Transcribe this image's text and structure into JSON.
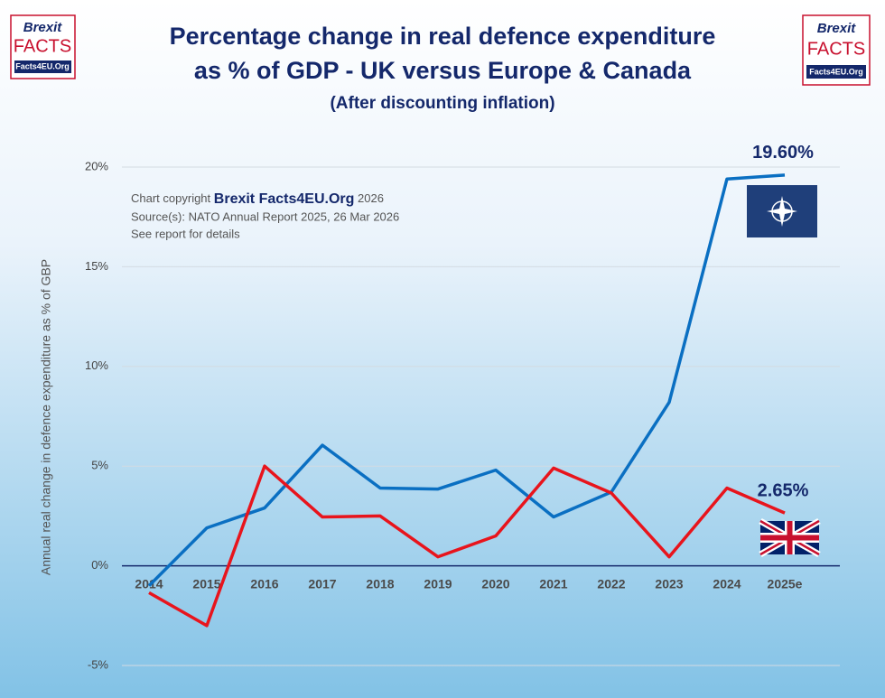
{
  "chart_data": {
    "type": "line",
    "title": "Percentage change in real defence expenditure",
    "title_line2": "as % of GDP - UK versus Europe & Canada",
    "subtitle": "(After discounting inflation)",
    "y_label": "Annual real change in defence expenditure as % of GBP",
    "annotations": {
      "copyright_prefix": "Chart copyright",
      "brand": "Brexit Facts4EU.Org",
      "year": "2026",
      "source": "Source(s): NATO Annual Report 2025, 26 Mar 2026",
      "note": "See report for details"
    },
    "logo": {
      "top": "Brexit",
      "middle": "FACTS",
      "bottom": "Facts4EU.Org"
    },
    "categories": [
      "2014",
      "2015",
      "2016",
      "2017",
      "2018",
      "2019",
      "2020",
      "2021",
      "2022",
      "2023",
      "2024",
      "2025e"
    ],
    "series": [
      {
        "color": "#0a6fc2",
        "values": [
          -1.0,
          1.9,
          2.9,
          6.05,
          3.9,
          3.85,
          4.8,
          2.45,
          3.7,
          8.2,
          19.4,
          19.6
        ],
        "value_labels": [
          null,
          null,
          null,
          null,
          null,
          null,
          null,
          null,
          null,
          null,
          null,
          "19.60%"
        ]
      },
      {
        "color": "#e8141c",
        "values": [
          -1.35,
          -3.0,
          5.0,
          2.45,
          2.5,
          0.45,
          1.5,
          4.9,
          3.65,
          0.45,
          3.9,
          2.65
        ],
        "value_labels": [
          null,
          null,
          null,
          null,
          null,
          null,
          null,
          null,
          null,
          null,
          null,
          "2.65%"
        ]
      }
    ],
    "ylim": [
      -5,
      20
    ],
    "yticks": [
      {
        "value": -5,
        "label": "-5%"
      },
      {
        "value": 0,
        "label": "0%"
      },
      {
        "value": 5,
        "label": "5%"
      },
      {
        "value": 10,
        "label": "10%"
      },
      {
        "value": 15,
        "label": "15%"
      },
      {
        "value": 20,
        "label": "20%"
      }
    ],
    "grid": true
  }
}
